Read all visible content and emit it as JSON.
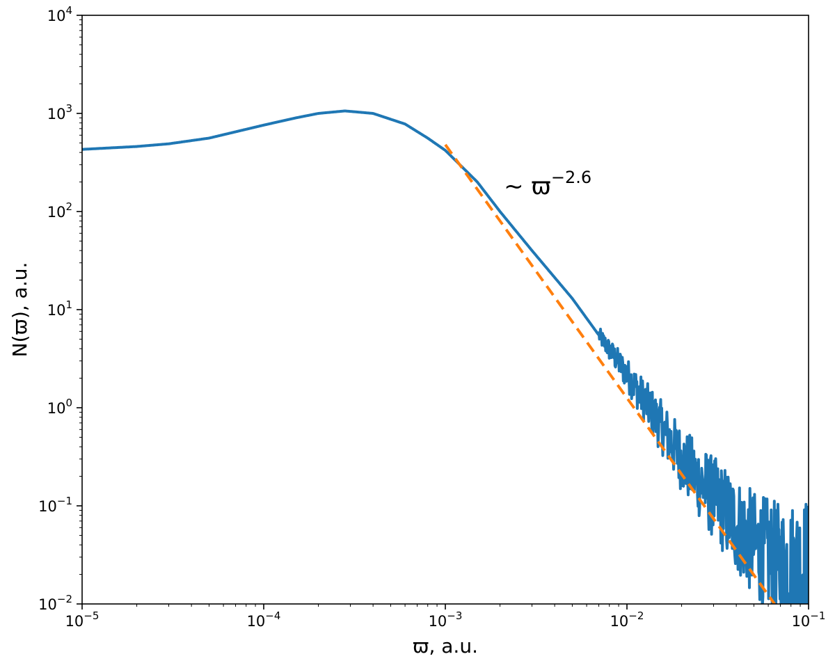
{
  "chart_data": {
    "type": "line",
    "xscale": "log",
    "yscale": "log",
    "xlim": [
      1e-05,
      0.1
    ],
    "ylim": [
      0.01,
      10000
    ],
    "xlabel": "ϖ, a.u.",
    "ylabel": "N(ϖ), a.u.",
    "x_ticks": [
      {
        "value": 1e-05,
        "base": "10",
        "exp": "−5"
      },
      {
        "value": 0.0001,
        "base": "10",
        "exp": "−4"
      },
      {
        "value": 0.001,
        "base": "10",
        "exp": "−3"
      },
      {
        "value": 0.01,
        "base": "10",
        "exp": "−2"
      },
      {
        "value": 0.1,
        "base": "10",
        "exp": "−1"
      }
    ],
    "y_ticks": [
      {
        "value": 0.01,
        "base": "10",
        "exp": "−2"
      },
      {
        "value": 0.1,
        "base": "10",
        "exp": "−1"
      },
      {
        "value": 1,
        "base": "10",
        "exp": "0"
      },
      {
        "value": 10,
        "base": "10",
        "exp": "1"
      },
      {
        "value": 100,
        "base": "10",
        "exp": "2"
      },
      {
        "value": 1000,
        "base": "10",
        "exp": "3"
      },
      {
        "value": 10000,
        "base": "10",
        "exp": "4"
      }
    ],
    "grid": false,
    "series": [
      {
        "color": "#1f77b4",
        "style": "solid",
        "noisy_above_x": 0.007,
        "x": [
          1e-05,
          2e-05,
          3e-05,
          5e-05,
          0.0001,
          0.00015,
          0.0002,
          0.00028,
          0.0004,
          0.0006,
          0.0008,
          0.001,
          0.0015,
          0.002,
          0.003,
          0.005,
          0.007,
          0.01,
          0.015,
          0.02,
          0.03,
          0.05,
          0.07,
          0.1
        ],
        "y": [
          430,
          460,
          490,
          560,
          760,
          900,
          1000,
          1060,
          1000,
          780,
          560,
          420,
          200,
          100,
          40,
          13,
          5.5,
          2.2,
          0.7,
          0.3,
          0.12,
          0.04,
          0.025,
          0.025
        ]
      },
      {
        "color": "#ff7f0e",
        "style": "dashed",
        "x": [
          0.001,
          0.065
        ],
        "y": [
          480,
          0.01
        ]
      }
    ],
    "annotations": [
      {
        "text_prefix": "~ ϖ",
        "text_sup": "−2.6",
        "x": 0.0021,
        "y": 150
      }
    ]
  }
}
